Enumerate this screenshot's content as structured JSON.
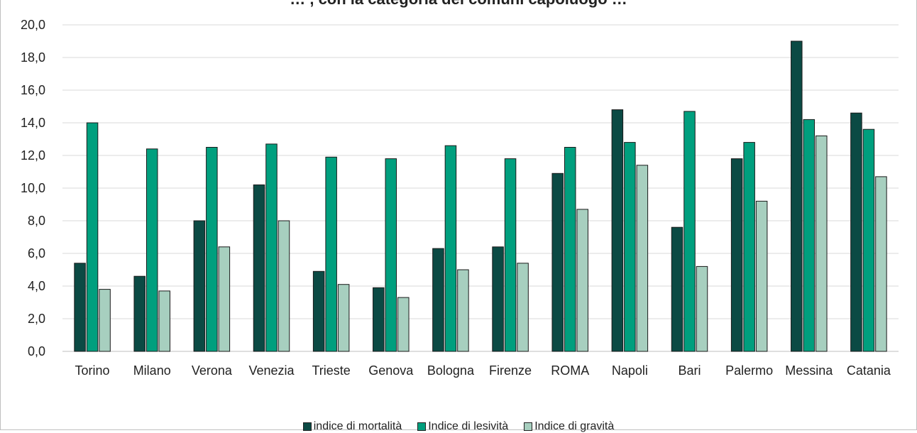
{
  "chart_data": {
    "type": "bar",
    "title": "… , con la categoria dei comuni capoluogo …",
    "categories": [
      "Torino",
      "Milano",
      "Verona",
      "Venezia",
      "Trieste",
      "Genova",
      "Bologna",
      "Firenze",
      "ROMA",
      "Napoli",
      "Bari",
      "Palermo",
      "Messina",
      "Catania"
    ],
    "series": [
      {
        "name": "indice di mortalità",
        "color": "#0b4a44",
        "values": [
          5.4,
          4.6,
          8.0,
          10.2,
          4.9,
          3.9,
          6.3,
          6.4,
          10.9,
          14.8,
          7.6,
          11.8,
          19.0,
          14.6
        ]
      },
      {
        "name": "Indice di lesività",
        "color": "#009f7e",
        "values": [
          14.0,
          12.4,
          12.5,
          12.7,
          11.9,
          11.8,
          12.6,
          11.8,
          12.5,
          12.8,
          14.7,
          12.8,
          14.2,
          13.6
        ]
      },
      {
        "name": "Indice di gravità",
        "color": "#a7cfbf",
        "values": [
          3.8,
          3.7,
          6.4,
          8.0,
          4.1,
          3.3,
          5.0,
          5.4,
          8.7,
          11.4,
          5.2,
          9.2,
          13.2,
          10.7
        ]
      }
    ],
    "ylim": [
      0,
      20
    ],
    "yticks": [
      "0,0",
      "2,0",
      "4,0",
      "6,0",
      "8,0",
      "10,0",
      "12,0",
      "14,0",
      "16,0",
      "18,0",
      "20,0"
    ],
    "grid": true,
    "legend_position": "bottom"
  }
}
